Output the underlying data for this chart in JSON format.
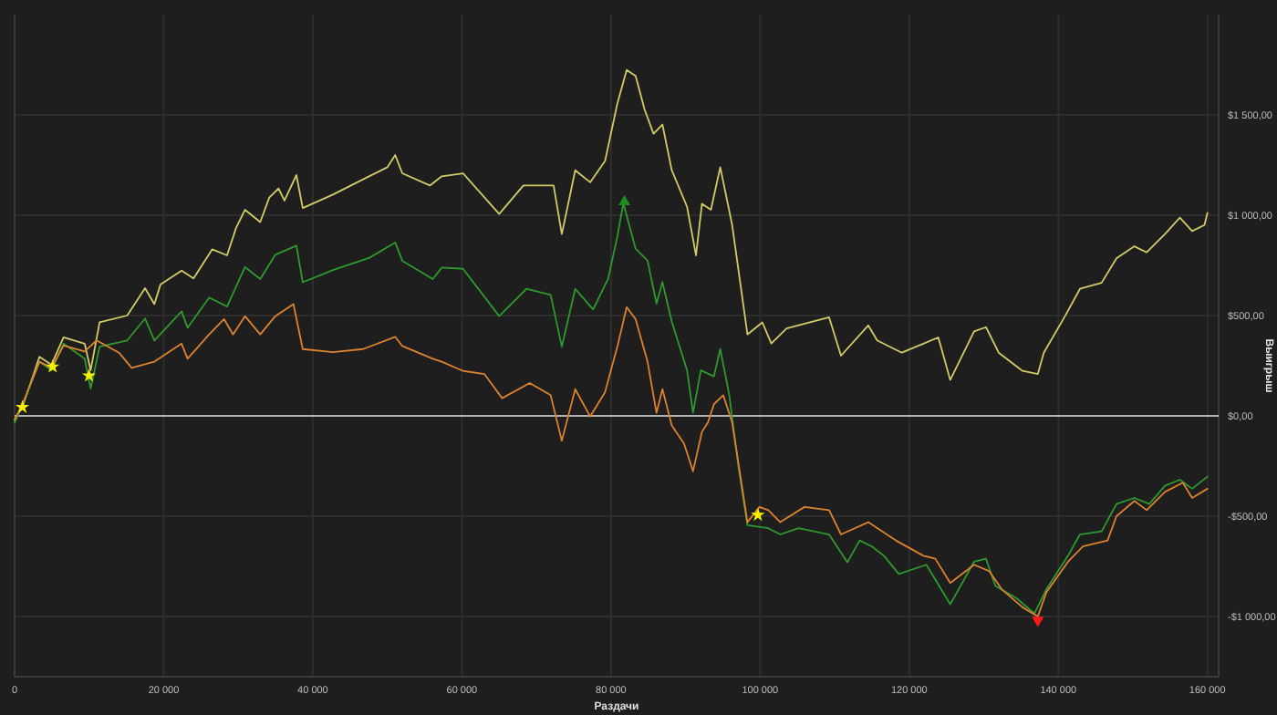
{
  "chart_data": {
    "type": "line",
    "xlabel": "Раздачи",
    "ylabel": "Выигрыш",
    "xlim": [
      0,
      161500
    ],
    "ylim": [
      -1300,
      2000
    ],
    "xticks": [
      0,
      {
        "value": 20000,
        "label": "20 000"
      },
      {
        "value": 40000,
        "label": "40 000"
      },
      {
        "value": 60000,
        "label": "60 000"
      },
      {
        "value": 80000,
        "label": "80 000"
      },
      {
        "value": 100000,
        "label": "100 000"
      },
      {
        "value": 120000,
        "label": "120 000"
      },
      {
        "value": 140000,
        "label": "140 000"
      },
      {
        "value": 160000,
        "label": "160 000"
      }
    ],
    "yticks": [
      {
        "value": -1000,
        "label": "-$1 000,00"
      },
      {
        "value": -500,
        "label": "-$500,00"
      },
      {
        "value": 0,
        "label": "$0,00"
      },
      {
        "value": 500,
        "label": "$500,00"
      },
      {
        "value": 1000,
        "label": "$1 000,00"
      },
      {
        "value": 1500,
        "label": "$1 500,00"
      }
    ],
    "grid": true,
    "line_style": "solid",
    "ref_lines": [
      {
        "axis": "y",
        "value": 0,
        "color": "#b4b4b4"
      }
    ],
    "series": [
      {
        "color": "#d4cb68",
        "x": [
          0,
          1050,
          3330,
          4950,
          6570,
          9400,
          10200,
          11400,
          15100,
          17500,
          18750,
          19560,
          22400,
          24000,
          26500,
          28500,
          29700,
          30900,
          32950,
          34160,
          35400,
          36200,
          37800,
          38650,
          42700,
          46750,
          50000,
          51050,
          52000,
          55700,
          57300,
          60150,
          65000,
          68250,
          72300,
          73400,
          75200,
          77200,
          79200,
          80850,
          82100,
          83300,
          84500,
          85700,
          86900,
          88150,
          90200,
          91400,
          92200,
          93400,
          94650,
          96250,
          98300,
          100300,
          101500,
          103550,
          109250,
          110850,
          114500,
          115700,
          119000,
          123900,
          125500,
          128700,
          130300,
          132000,
          135200,
          137250,
          138050,
          140900,
          142900,
          145800,
          147800,
          150200,
          151850,
          154300,
          156300,
          157950,
          159600,
          160000
        ],
        "values": [
          -20,
          43,
          294,
          255,
          391,
          360,
          227,
          466,
          500,
          636,
          557,
          654,
          724,
          685,
          830,
          800,
          936,
          1027,
          966,
          1088,
          1133,
          1073,
          1200,
          1036,
          1103,
          1179,
          1239,
          1300,
          1209,
          1148,
          1194,
          1209,
          1006,
          1148,
          1148,
          906,
          1224,
          1164,
          1270,
          1557,
          1724,
          1694,
          1527,
          1406,
          1452,
          1224,
          1042,
          800,
          1057,
          1027,
          1239,
          951,
          406,
          466,
          361,
          436,
          491,
          300,
          451,
          376,
          315,
          391,
          179,
          421,
          442,
          315,
          224,
          209,
          315,
          497,
          633,
          663,
          785,
          845,
          815,
          906,
          988,
          921,
          951,
          1012
        ]
      },
      {
        "color": "#2e9a2e",
        "x": [
          0,
          1050,
          3330,
          4950,
          6570,
          9400,
          10200,
          11400,
          15100,
          17500,
          18750,
          22400,
          23200,
          26100,
          28500,
          30900,
          32950,
          34970,
          37800,
          38650,
          42700,
          47600,
          51050,
          52000,
          56100,
          57300,
          60150,
          65000,
          68650,
          71900,
          73400,
          75200,
          77600,
          79600,
          80850,
          81650,
          83300,
          84900,
          86100,
          86900,
          88150,
          90200,
          91000,
          92050,
          93800,
          94650,
          95850,
          97100,
          98300,
          101100,
          102700,
          105150,
          109250,
          111700,
          113350,
          115000,
          116600,
          118600,
          122300,
          125500,
          128700,
          130300,
          131550,
          134400,
          136800,
          138400,
          141300,
          142900,
          145800,
          147800,
          150200,
          152200,
          154300,
          156300,
          157950,
          160000
        ],
        "values": [
          -35,
          52,
          270,
          227,
          360,
          285,
          136,
          345,
          376,
          485,
          376,
          521,
          439,
          590,
          545,
          742,
          682,
          803,
          848,
          666,
          727,
          788,
          864,
          773,
          682,
          739,
          733,
          497,
          633,
          603,
          345,
          633,
          530,
          682,
          894,
          1060,
          833,
          773,
          560,
          666,
          469,
          227,
          15,
          227,
          197,
          333,
          106,
          -257,
          -545,
          -560,
          -591,
          -560,
          -591,
          -730,
          -621,
          -651,
          -697,
          -788,
          -742,
          -939,
          -727,
          -712,
          -848,
          -909,
          -985,
          -864,
          -697,
          -591,
          -576,
          -439,
          -409,
          -439,
          -348,
          -318,
          -363,
          -303
        ]
      },
      {
        "color": "#dc8230",
        "x": [
          0,
          1050,
          3330,
          4950,
          6570,
          9400,
          11000,
          14000,
          15700,
          18750,
          22400,
          23200,
          26100,
          28100,
          29300,
          30900,
          32950,
          34970,
          37400,
          38650,
          42700,
          46750,
          51050,
          52000,
          56100,
          57300,
          60150,
          63000,
          65400,
          69100,
          71900,
          73400,
          75200,
          77200,
          79200,
          80850,
          82100,
          83300,
          84900,
          86100,
          86900,
          88150,
          89800,
          91000,
          92200,
          93000,
          93800,
          95050,
          96250,
          98300,
          99900,
          101100,
          102700,
          105950,
          109250,
          110850,
          114500,
          118200,
          121900,
          123500,
          125500,
          128700,
          130700,
          132400,
          135200,
          137250,
          138400,
          141300,
          143300,
          146600,
          147800,
          150200,
          151850,
          154300,
          156700,
          157950,
          160000
        ],
        "values": [
          -20,
          58,
          270,
          239,
          351,
          321,
          376,
          315,
          239,
          270,
          360,
          285,
          406,
          482,
          406,
          497,
          406,
          497,
          557,
          333,
          318,
          333,
          394,
          348,
          285,
          270,
          224,
          209,
          88,
          164,
          103,
          -124,
          133,
          -3,
          118,
          345,
          542,
          482,
          270,
          15,
          133,
          -48,
          -139,
          -276,
          -79,
          -33,
          58,
          103,
          -33,
          -530,
          -454,
          -470,
          -530,
          -454,
          -470,
          -591,
          -530,
          -621,
          -697,
          -712,
          -833,
          -742,
          -773,
          -864,
          -954,
          -1000,
          -879,
          -727,
          -651,
          -621,
          -500,
          -424,
          -470,
          -379,
          -333,
          -409,
          -363
        ]
      },
      {
        "type": "scatter",
        "marker": "star",
        "color": "#f5f000",
        "x": [
          1050,
          5100,
          9980,
          99700
        ],
        "values": [
          43,
          245,
          200,
          -494
        ]
      },
      {
        "type": "scatter",
        "marker": "triangle",
        "color": "#1e8c1e",
        "x": [
          81800
        ],
        "values": [
          1067
        ]
      },
      {
        "type": "scatter",
        "marker": "triangle-down",
        "color": "#ff1a1a",
        "x": [
          137250
        ],
        "values": [
          -1018
        ]
      }
    ]
  }
}
